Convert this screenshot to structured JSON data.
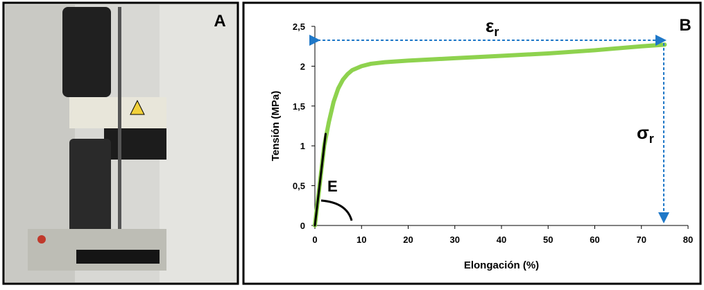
{
  "panel_a": {
    "label": "A"
  },
  "chart_data": {
    "type": "line",
    "panel_label": "B",
    "xlabel": "Elongación (%)",
    "ylabel": "Tensión (MPa)",
    "xlim": [
      0,
      80
    ],
    "xticks": [
      0,
      10,
      20,
      30,
      40,
      50,
      60,
      70,
      80
    ],
    "ylim": [
      0,
      2.5
    ],
    "yticks": [
      0,
      {
        "value": 0.5,
        "label": "0,5"
      },
      1,
      {
        "value": 1.5,
        "label": "1,5"
      },
      2,
      {
        "value": 2.5,
        "label": "2,5"
      }
    ],
    "grid": false,
    "series": [
      {
        "color": "#8ed24e",
        "x": [
          0,
          1,
          2,
          3,
          4,
          5,
          6,
          7,
          8,
          10,
          12,
          15,
          20,
          30,
          40,
          50,
          60,
          70,
          75
        ],
        "values": [
          0,
          0.5,
          1.0,
          1.3,
          1.55,
          1.72,
          1.83,
          1.9,
          1.95,
          2.0,
          2.03,
          2.05,
          2.07,
          2.1,
          2.13,
          2.16,
          2.2,
          2.25,
          2.27
        ]
      },
      {
        "color": "#000000",
        "x": [
          0,
          2.3
        ],
        "values": [
          0,
          1.15
        ]
      }
    ],
    "annotations": [
      {
        "text": "ε",
        "sub": "r"
      },
      {
        "text": "σ",
        "sub": "r"
      },
      {
        "text": "E"
      }
    ]
  }
}
